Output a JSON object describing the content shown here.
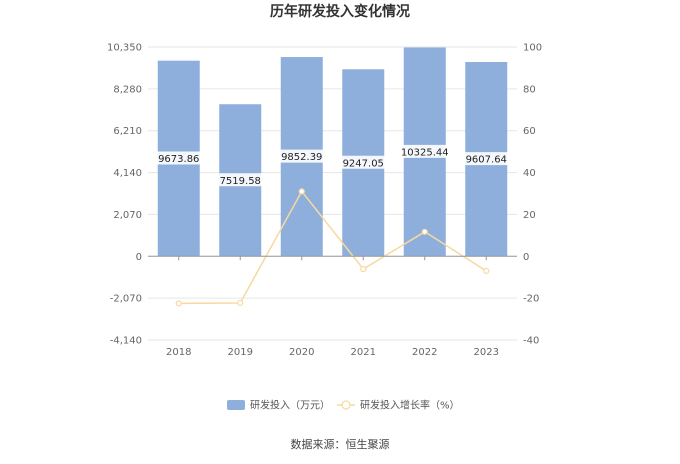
{
  "chart_data": {
    "type": "bar",
    "title": "历年研发投入变化情况",
    "categories": [
      "2018",
      "2019",
      "2020",
      "2021",
      "2022",
      "2023"
    ],
    "series": [
      {
        "name": "研发投入（万元）",
        "type": "bar",
        "axis": "left",
        "color": "#8eaedc",
        "values": [
          9673.86,
          7519.58,
          9852.39,
          9247.05,
          10325.44,
          9607.64
        ],
        "labels": [
          "9673.86",
          "7519.58",
          "9852.39",
          "9247.05",
          "10325.44",
          "9607.64"
        ]
      },
      {
        "name": "研发投入增长率（%）",
        "type": "line",
        "axis": "right",
        "color": "#f7d9a0",
        "values": [
          -22.5,
          -22.3,
          31.0,
          -6.1,
          11.7,
          -7.0
        ]
      }
    ],
    "left_axis": {
      "ylim": [
        -4140,
        10350
      ],
      "ticks": [
        -4140,
        -2070,
        0,
        2070,
        4140,
        6210,
        8280,
        10350
      ],
      "tick_labels": [
        "-4,140",
        "-2,070",
        "0",
        "2,070",
        "4,140",
        "6,210",
        "8,280",
        "10,350"
      ]
    },
    "right_axis": {
      "ylim": [
        -40,
        100
      ],
      "ticks": [
        -40,
        -20,
        0,
        20,
        40,
        60,
        80,
        100
      ],
      "tick_labels": [
        "-40",
        "-20",
        "0",
        "20",
        "40",
        "60",
        "80",
        "100"
      ]
    },
    "grid": true,
    "legend": "bottom-center"
  },
  "footer": {
    "source": "数据来源：恒生聚源"
  }
}
